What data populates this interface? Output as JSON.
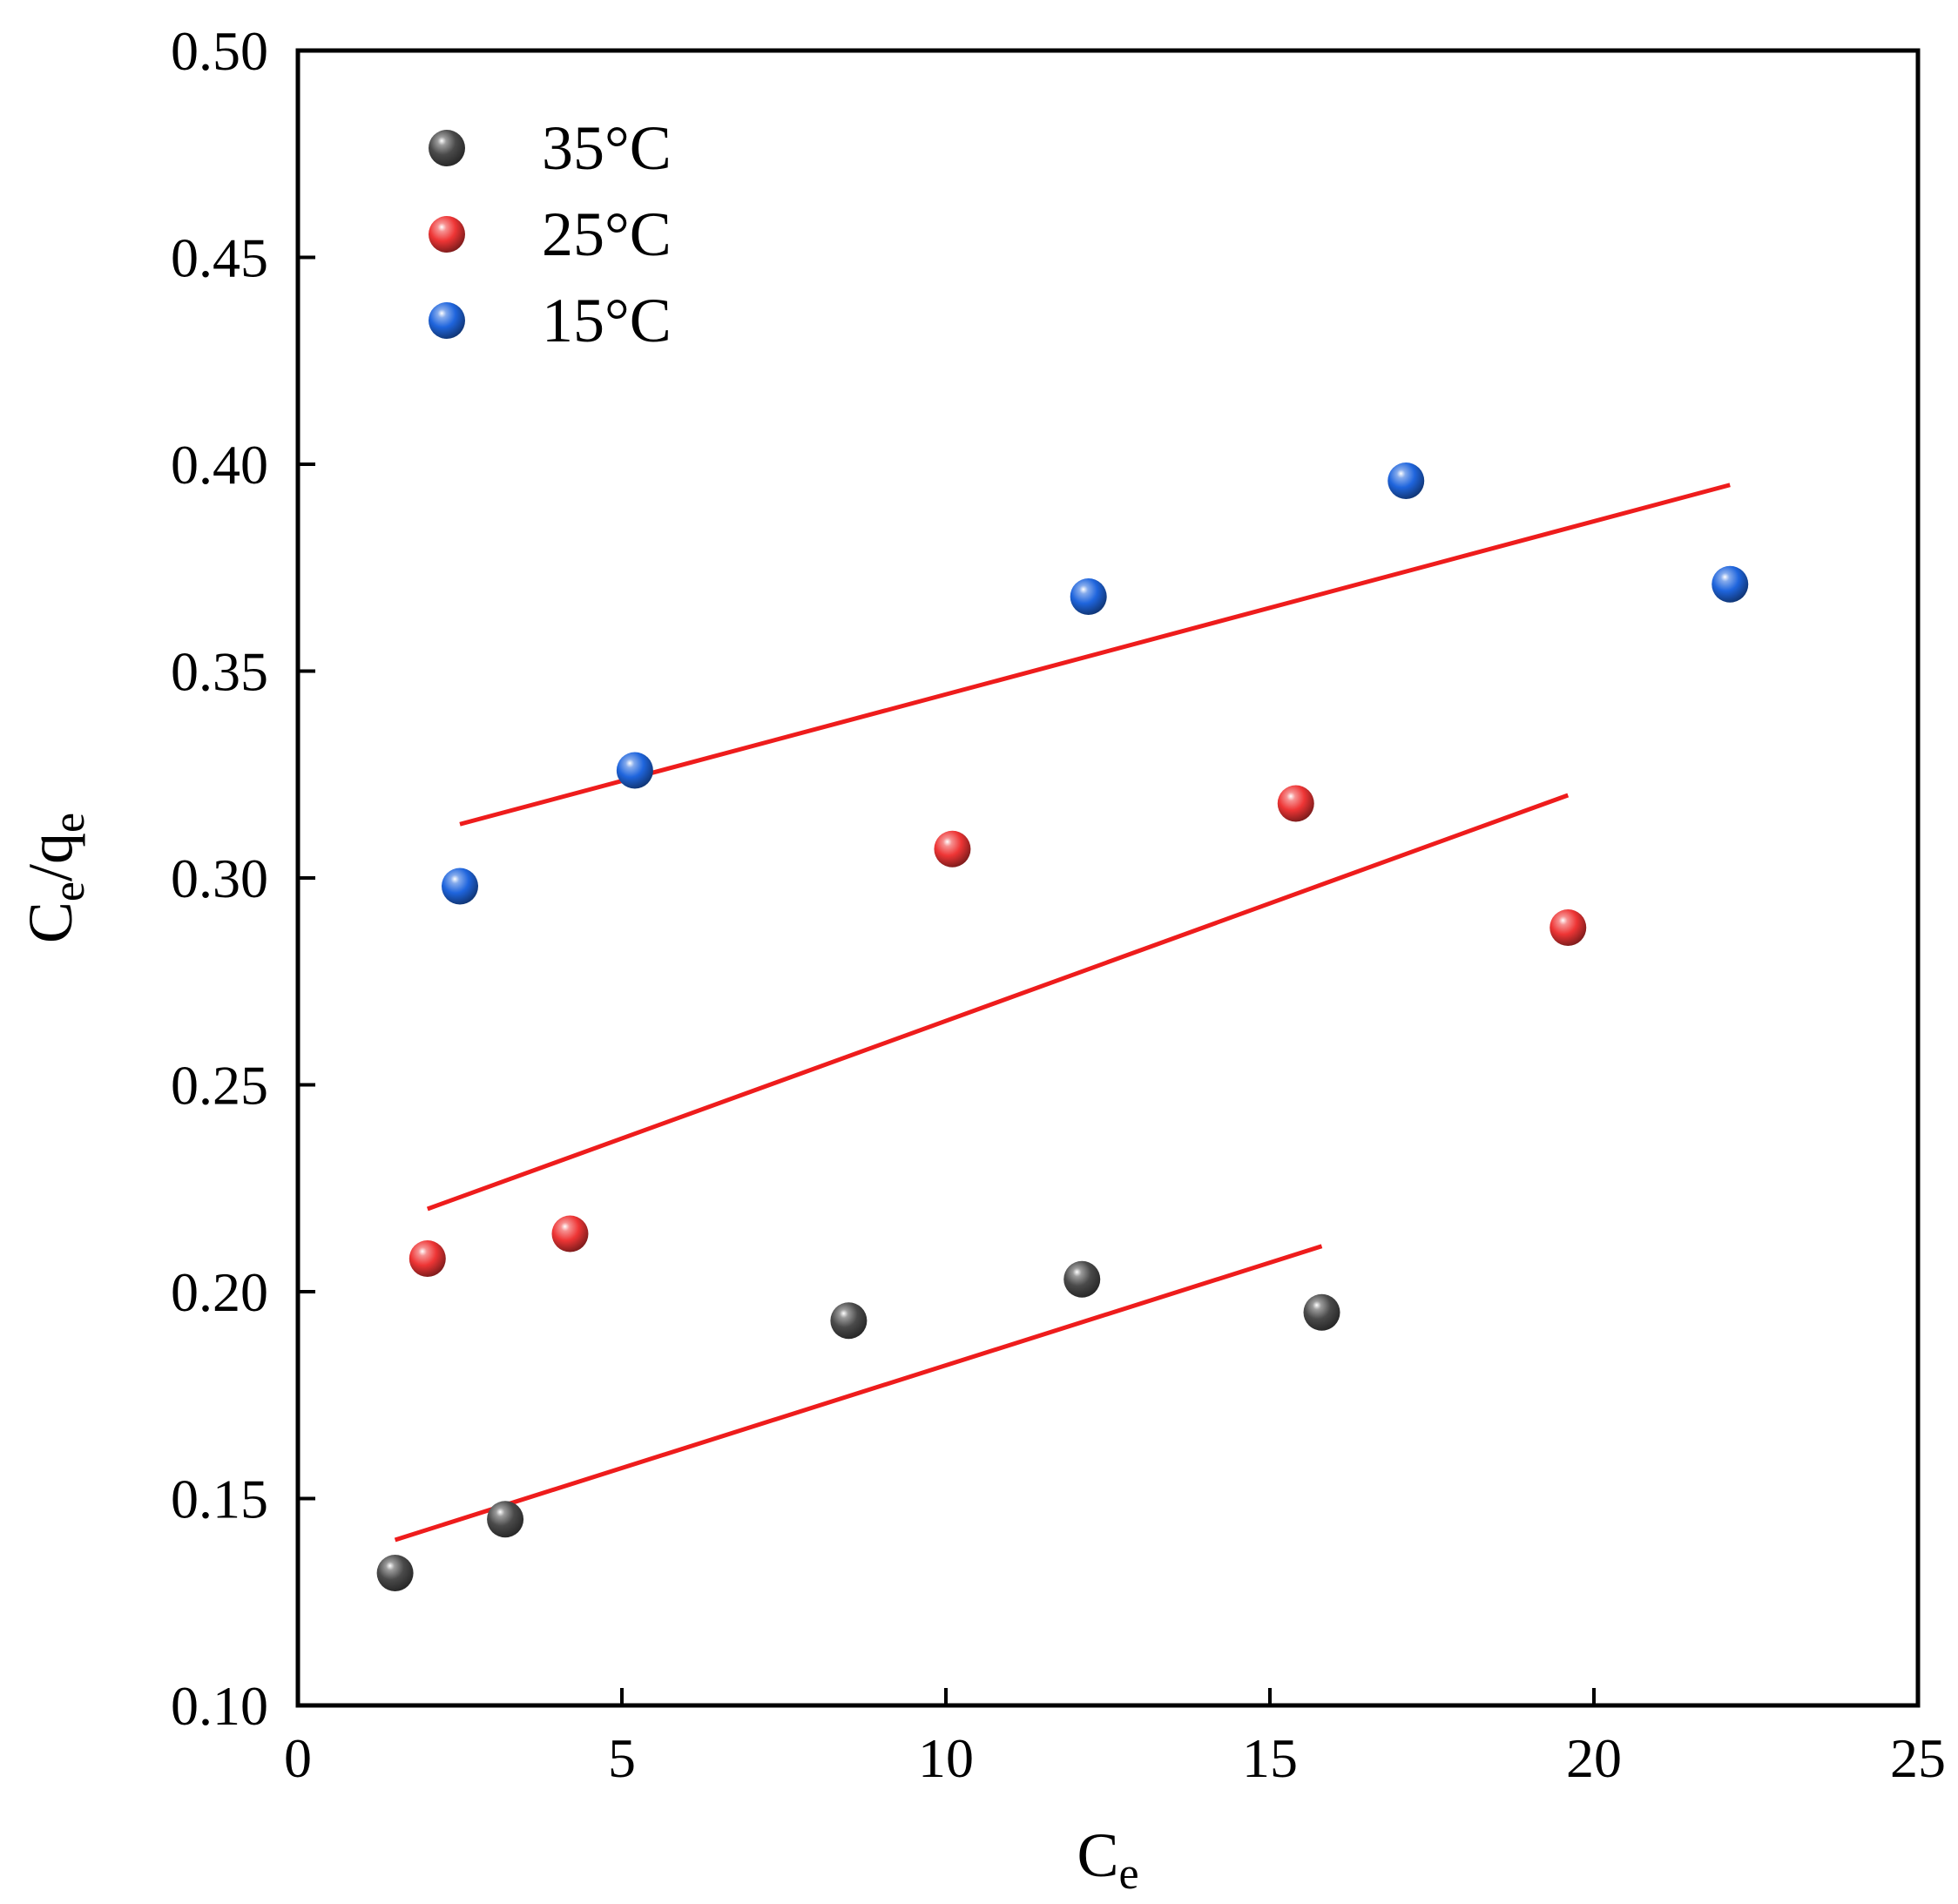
{
  "chart_data": {
    "type": "scatter",
    "title": "",
    "xlabel": "C",
    "xlabel_sub": "e",
    "ylabel_parts": [
      "C",
      "e",
      "/q",
      "e"
    ],
    "xlim": [
      0,
      25
    ],
    "ylim": [
      0.1,
      0.5
    ],
    "x_ticks": [
      0,
      5,
      10,
      15,
      20,
      25
    ],
    "x_tick_labels": [
      "0",
      "5",
      "10",
      "15",
      "20",
      "25"
    ],
    "y_ticks": [
      0.1,
      0.15,
      0.2,
      0.25,
      0.3,
      0.35,
      0.4,
      0.45,
      0.5
    ],
    "y_tick_labels": [
      "0.10",
      "0.15",
      "0.20",
      "0.25",
      "0.30",
      "0.35",
      "0.40",
      "0.45",
      "0.50"
    ],
    "grid": false,
    "legend_position": "top-left",
    "fit_line_color": "#ee1c1c",
    "series": [
      {
        "name": "35°C",
        "color": "#4a4a4a",
        "x": [
          1.5,
          3.2,
          8.5,
          12.1,
          15.8
        ],
        "y": [
          0.132,
          0.145,
          0.193,
          0.203,
          0.195
        ],
        "fit": {
          "x": [
            1.5,
            15.8
          ],
          "y": [
            0.14,
            0.211
          ]
        }
      },
      {
        "name": "25°C",
        "color": "#ee3535",
        "x": [
          2.0,
          4.2,
          10.1,
          15.4,
          19.6
        ],
        "y": [
          0.208,
          0.214,
          0.307,
          0.318,
          0.288
        ],
        "fit": {
          "x": [
            2.0,
            19.6
          ],
          "y": [
            0.22,
            0.32
          ]
        }
      },
      {
        "name": "15°C",
        "color": "#1f65dd",
        "x": [
          2.5,
          5.2,
          12.2,
          17.1,
          22.1
        ],
        "y": [
          0.298,
          0.326,
          0.368,
          0.396,
          0.371
        ],
        "fit": {
          "x": [
            2.5,
            22.1
          ],
          "y": [
            0.313,
            0.395
          ]
        }
      }
    ]
  }
}
